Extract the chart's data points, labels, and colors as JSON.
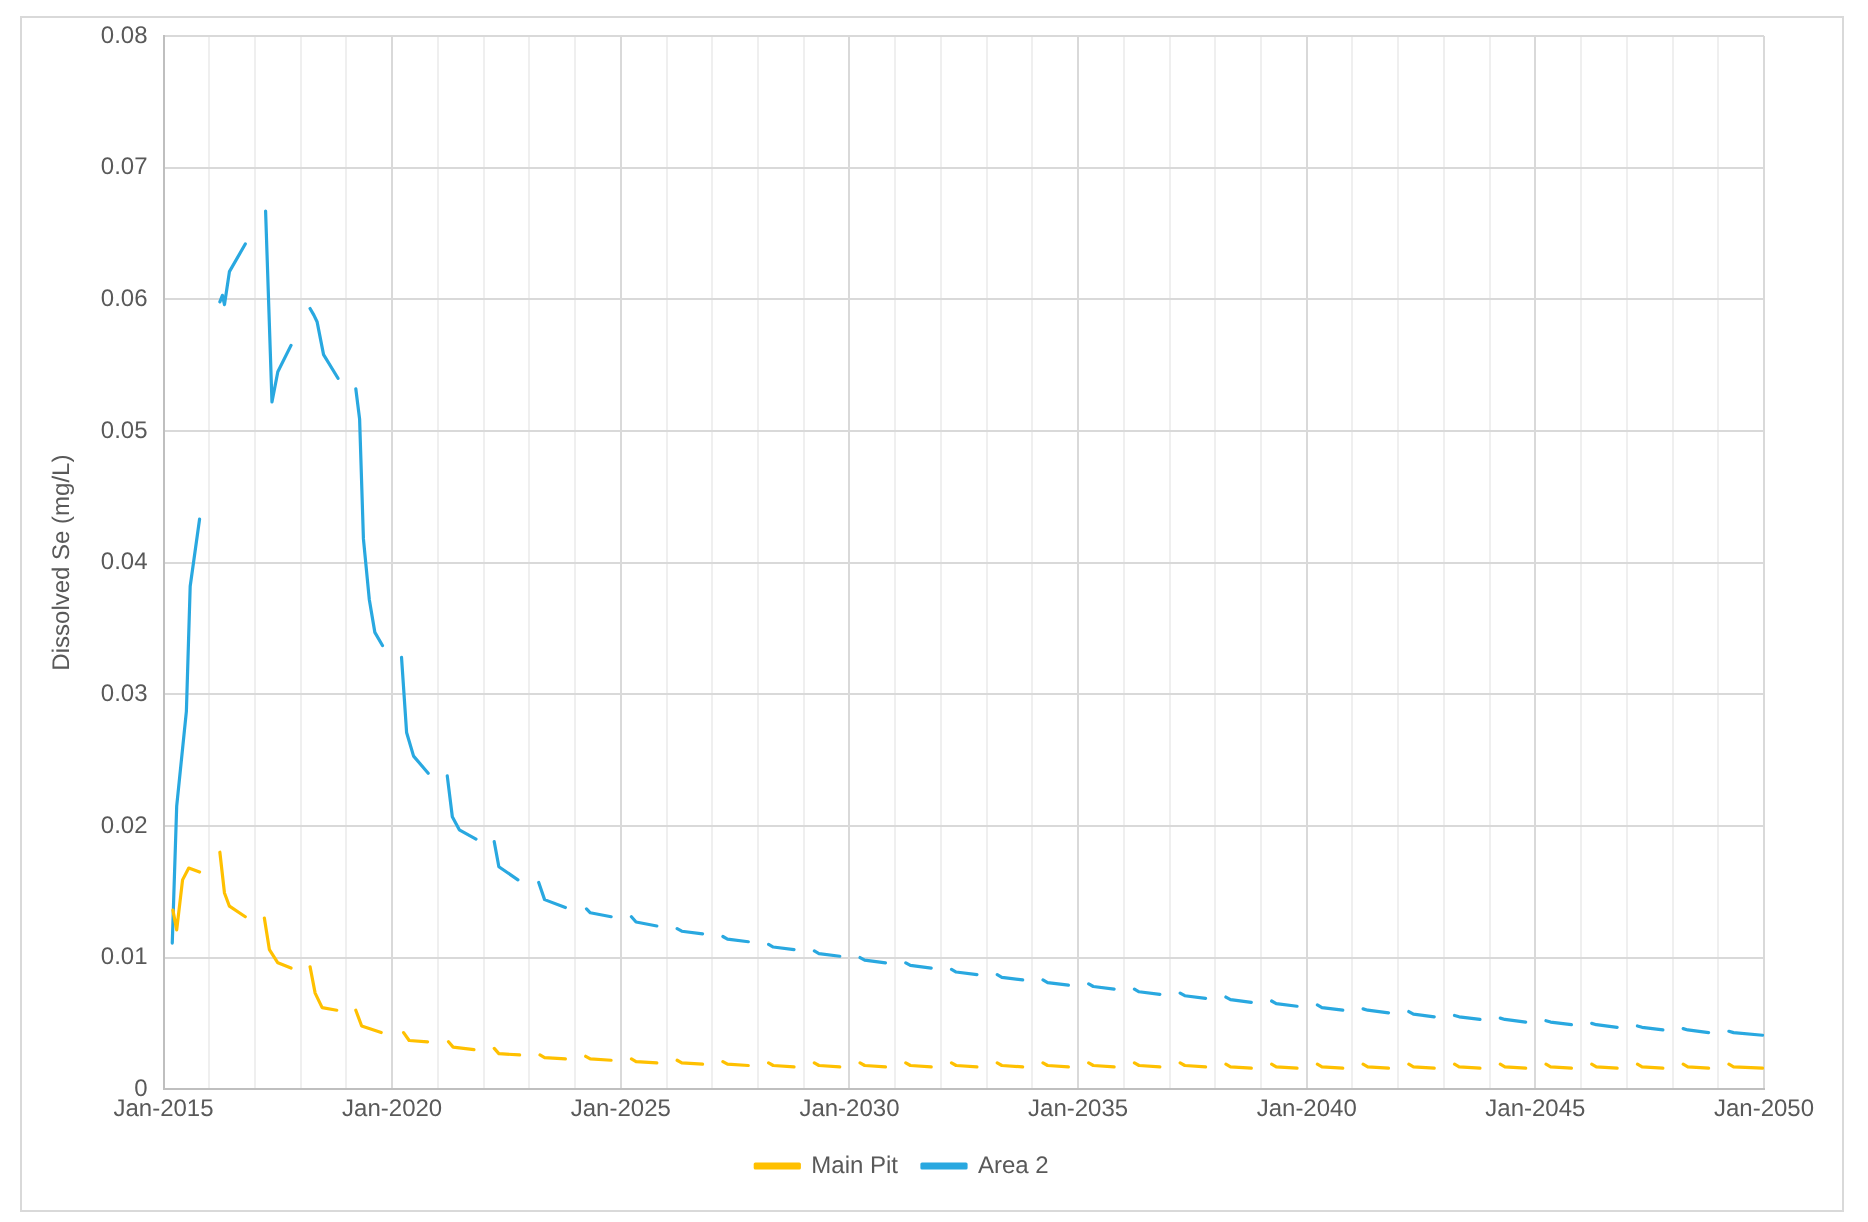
{
  "chart_data": {
    "type": "line",
    "ylabel": "Dissolved Se (mg/L)",
    "xlim": [
      "2015-01",
      "2050-01"
    ],
    "ylim": [
      0,
      0.08
    ],
    "yticks": [
      0,
      0.01,
      0.02,
      0.03,
      0.04,
      0.05,
      0.06,
      0.07,
      0.08
    ],
    "xticks": [
      {
        "value": "2015-01",
        "label": "Jan-2015"
      },
      {
        "value": "2016-01",
        "label": null
      },
      {
        "value": "2017-01",
        "label": null
      },
      {
        "value": "2018-01",
        "label": null
      },
      {
        "value": "2019-01",
        "label": null
      },
      {
        "value": "2020-01",
        "label": "Jan-2020"
      },
      {
        "value": "2021-01",
        "label": null
      },
      {
        "value": "2022-01",
        "label": null
      },
      {
        "value": "2023-01",
        "label": null
      },
      {
        "value": "2024-01",
        "label": null
      },
      {
        "value": "2025-01",
        "label": "Jan-2025"
      },
      {
        "value": "2026-01",
        "label": null
      },
      {
        "value": "2027-01",
        "label": null
      },
      {
        "value": "2028-01",
        "label": null
      },
      {
        "value": "2029-01",
        "label": null
      },
      {
        "value": "2030-01",
        "label": "Jan-2030"
      },
      {
        "value": "2031-01",
        "label": null
      },
      {
        "value": "2032-01",
        "label": null
      },
      {
        "value": "2033-01",
        "label": null
      },
      {
        "value": "2034-01",
        "label": null
      },
      {
        "value": "2035-01",
        "label": "Jan-2035"
      },
      {
        "value": "2036-01",
        "label": null
      },
      {
        "value": "2037-01",
        "label": null
      },
      {
        "value": "2038-01",
        "label": null
      },
      {
        "value": "2039-01",
        "label": null
      },
      {
        "value": "2040-01",
        "label": "Jan-2040"
      },
      {
        "value": "2041-01",
        "label": null
      },
      {
        "value": "2042-01",
        "label": null
      },
      {
        "value": "2043-01",
        "label": null
      },
      {
        "value": "2044-01",
        "label": null
      },
      {
        "value": "2045-01",
        "label": "Jan-2045"
      },
      {
        "value": "2046-01",
        "label": null
      },
      {
        "value": "2047-01",
        "label": null
      },
      {
        "value": "2048-01",
        "label": null
      },
      {
        "value": "2049-01",
        "label": null
      },
      {
        "value": "2050-01",
        "label": "Jan-2050"
      }
    ],
    "grid": true,
    "legend": "bottom",
    "series": [
      {
        "name": "Main Pit",
        "color": "#ffc000",
        "x": [
          "2015-03-15",
          "2015-04-15",
          "2015-06-01",
          "2015-07-20",
          "2015-10-15",
          "2015-12-15",
          "2016-03-25",
          "2016-05-01",
          "2016-06-10",
          "2016-10-15",
          "2016-12-15",
          "2017-03-15",
          "2017-04-25",
          "2017-07-01",
          "2017-10-15",
          "2017-12-15",
          "2018-03-15",
          "2018-04-25",
          "2018-06-20",
          "2018-10-15",
          "2018-12-15",
          "2019-03-15",
          "2019-05-01",
          "2019-10-05",
          "2019-12-15",
          "2020-04-01",
          "2020-05-15",
          "2020-10-10",
          "2020-12-15",
          "2021-03-25",
          "2021-05-01",
          "2021-10-15",
          "2021-12-15",
          "2022-03-25",
          "2022-05-01",
          "2022-10-15",
          "2022-12-15",
          "2023-03-25",
          "2023-05-01",
          "2023-10-15",
          "2023-12-15",
          "2024-03-25",
          "2024-05-01",
          "2024-10-15",
          "2024-12-15",
          "2025-03-25",
          "2025-05-01",
          "2025-10-15",
          "2025-12-15",
          "2026-03-25",
          "2026-05-01",
          "2026-10-15",
          "2026-12-15",
          "2027-03-25",
          "2027-05-01",
          "2027-10-15",
          "2027-12-15",
          "2028-03-25",
          "2028-05-01",
          "2028-10-15",
          "2028-12-15",
          "2029-03-25",
          "2029-05-01",
          "2029-10-15",
          "2029-12-15",
          "2030-03-25",
          "2030-05-01",
          "2030-10-15",
          "2030-12-15",
          "2031-03-25",
          "2031-05-01",
          "2031-10-15",
          "2031-12-15",
          "2032-03-25",
          "2032-05-01",
          "2032-10-15",
          "2032-12-15",
          "2033-03-25",
          "2033-05-01",
          "2033-10-15",
          "2033-12-15",
          "2034-03-25",
          "2034-05-01",
          "2034-10-15",
          "2034-12-15",
          "2035-03-25",
          "2035-05-01",
          "2035-10-15",
          "2035-12-15",
          "2036-03-25",
          "2036-05-01",
          "2036-10-15",
          "2036-12-15",
          "2037-03-25",
          "2037-05-01",
          "2037-10-15",
          "2037-12-15",
          "2038-03-25",
          "2038-05-01",
          "2038-10-15",
          "2038-12-15",
          "2039-03-25",
          "2039-05-01",
          "2039-10-15",
          "2039-12-15",
          "2040-03-25",
          "2040-05-01",
          "2040-10-15",
          "2040-12-15",
          "2041-03-25",
          "2041-05-01",
          "2041-10-15",
          "2041-12-15",
          "2042-03-25",
          "2042-05-01",
          "2042-10-15",
          "2042-12-15",
          "2043-03-25",
          "2043-05-01",
          "2043-10-15",
          "2043-12-15",
          "2044-03-25",
          "2044-05-01",
          "2044-10-15",
          "2044-12-15",
          "2045-03-25",
          "2045-05-01",
          "2045-10-15",
          "2045-12-15",
          "2046-03-25",
          "2046-05-01",
          "2046-10-15",
          "2046-12-15",
          "2047-03-25",
          "2047-05-01",
          "2047-10-15",
          "2047-12-15",
          "2048-03-25",
          "2048-05-01",
          "2048-10-15",
          "2048-12-15",
          "2049-03-25",
          "2049-05-01",
          "2049-12-20"
        ],
        "values": [
          0.0136,
          0.0121,
          0.0159,
          0.0168,
          0.0165,
          null,
          0.018,
          0.0149,
          0.0139,
          0.0131,
          null,
          0.013,
          0.0106,
          0.0096,
          0.0092,
          null,
          0.0093,
          0.0073,
          0.0062,
          0.006,
          null,
          0.006,
          0.0048,
          0.0043,
          null,
          0.0043,
          0.0037,
          0.0036,
          null,
          0.0036,
          0.0032,
          0.003,
          null,
          0.0031,
          0.0027,
          0.0026,
          null,
          0.0026,
          0.0024,
          0.0023,
          null,
          0.0025,
          0.0023,
          0.0022,
          null,
          0.0023,
          0.0021,
          0.002,
          null,
          0.0022,
          0.002,
          0.0019,
          null,
          0.0021,
          0.0019,
          0.0018,
          null,
          0.002,
          0.0018,
          0.0017,
          null,
          0.002,
          0.0018,
          0.0017,
          null,
          0.002,
          0.0018,
          0.0017,
          null,
          0.002,
          0.0018,
          0.0017,
          null,
          0.002,
          0.0018,
          0.0017,
          null,
          0.002,
          0.0018,
          0.0017,
          null,
          0.002,
          0.0018,
          0.0017,
          null,
          0.002,
          0.0018,
          0.0017,
          null,
          0.002,
          0.0018,
          0.0017,
          null,
          0.002,
          0.0018,
          0.0017,
          null,
          0.0019,
          0.0017,
          0.0016,
          null,
          0.0019,
          0.0017,
          0.0016,
          null,
          0.0019,
          0.0017,
          0.0016,
          null,
          0.0019,
          0.0017,
          0.0016,
          null,
          0.0019,
          0.0017,
          0.0016,
          null,
          0.0019,
          0.0017,
          0.0016,
          null,
          0.0019,
          0.0017,
          0.0016,
          null,
          0.0019,
          0.0017,
          0.0016,
          null,
          0.0019,
          0.0017,
          0.0016,
          null,
          0.0019,
          0.0017,
          0.0016,
          null,
          0.0019,
          0.0017,
          0.0016,
          null,
          0.0019,
          0.0017,
          0.0016
        ]
      },
      {
        "name": "Area 2",
        "color": "#29a8e0",
        "x": [
          "2015-03-10",
          "2015-04-15",
          "2015-07-01",
          "2015-08-01",
          "2015-10-15",
          "2015-12-15",
          "2016-03-25",
          "2016-04-15",
          "2016-05-01",
          "2016-06-10",
          "2016-10-15",
          "2016-12-15",
          "2017-03-25",
          "2017-05-15",
          "2017-07-01",
          "2017-10-15",
          "2017-12-15",
          "2018-03-15",
          "2018-04-15",
          "2018-05-10",
          "2018-07-01",
          "2018-10-25",
          "2018-12-15",
          "2019-03-15",
          "2019-04-15",
          "2019-05-15",
          "2019-07-01",
          "2019-08-15",
          "2019-10-15",
          "2019-12-15",
          "2020-03-15",
          "2020-04-25",
          "2020-06-20",
          "2020-10-15",
          "2020-12-15",
          "2021-03-15",
          "2021-04-25",
          "2021-06-20",
          "2021-11-01",
          "2021-12-15",
          "2022-03-25",
          "2022-05-01",
          "2022-10-01",
          "2022-12-15",
          "2023-03-15",
          "2023-05-01",
          "2023-10-15",
          "2023-12-15",
          "2024-04-01",
          "2024-05-01",
          "2024-10-15",
          "2024-12-15",
          "2025-03-25",
          "2025-05-01",
          "2025-10-15",
          "2025-12-15",
          "2026-03-25",
          "2026-05-01",
          "2026-10-15",
          "2026-12-15",
          "2027-03-25",
          "2027-05-01",
          "2027-10-15",
          "2027-12-15",
          "2028-03-25",
          "2028-05-01",
          "2028-10-15",
          "2028-12-15",
          "2029-03-25",
          "2029-05-01",
          "2029-10-15",
          "2029-12-15",
          "2030-03-25",
          "2030-05-01",
          "2030-10-15",
          "2030-12-15",
          "2031-03-25",
          "2031-05-01",
          "2031-10-15",
          "2031-12-15",
          "2032-03-25",
          "2032-05-01",
          "2032-10-15",
          "2032-12-15",
          "2033-03-25",
          "2033-05-01",
          "2033-10-15",
          "2033-12-15",
          "2034-03-25",
          "2034-05-01",
          "2034-10-15",
          "2034-12-15",
          "2035-03-25",
          "2035-05-01",
          "2035-10-15",
          "2035-12-15",
          "2036-03-25",
          "2036-05-01",
          "2036-10-15",
          "2036-12-15",
          "2037-03-25",
          "2037-05-01",
          "2037-10-15",
          "2037-12-15",
          "2038-03-25",
          "2038-05-01",
          "2038-10-15",
          "2038-12-15",
          "2039-03-25",
          "2039-05-01",
          "2039-10-15",
          "2039-12-15",
          "2040-03-25",
          "2040-05-01",
          "2040-10-15",
          "2040-12-15",
          "2041-03-25",
          "2041-05-01",
          "2041-10-15",
          "2041-12-15",
          "2042-03-25",
          "2042-05-01",
          "2042-10-15",
          "2042-12-15",
          "2043-03-25",
          "2043-05-01",
          "2043-10-15",
          "2043-12-15",
          "2044-03-25",
          "2044-05-01",
          "2044-10-15",
          "2044-12-15",
          "2045-03-25",
          "2045-05-01",
          "2045-10-15",
          "2045-12-15",
          "2046-03-25",
          "2046-05-01",
          "2046-10-15",
          "2046-12-15",
          "2047-03-25",
          "2047-05-01",
          "2047-10-15",
          "2047-12-15",
          "2048-03-25",
          "2048-05-01",
          "2048-10-15",
          "2048-12-15",
          "2049-03-25",
          "2049-05-01",
          "2049-12-20"
        ],
        "values": [
          0.0111,
          0.0215,
          0.0287,
          0.0382,
          0.0433,
          null,
          0.0598,
          0.0603,
          0.0596,
          0.0621,
          0.0642,
          null,
          0.0667,
          0.0522,
          0.0545,
          0.0565,
          null,
          0.0593,
          0.0588,
          0.0583,
          0.0558,
          0.054,
          null,
          0.0532,
          0.0509,
          0.0418,
          0.0372,
          0.0347,
          0.0337,
          null,
          0.0328,
          0.0271,
          0.0253,
          0.024,
          null,
          0.0238,
          0.0207,
          0.0197,
          0.019,
          null,
          0.0188,
          0.0169,
          0.0159,
          null,
          0.0157,
          0.0144,
          0.0138,
          null,
          0.0137,
          0.0134,
          0.0131,
          null,
          0.0131,
          0.0127,
          0.0124,
          null,
          0.0122,
          0.012,
          0.0118,
          null,
          0.0116,
          0.0114,
          0.0112,
          null,
          0.011,
          0.0108,
          0.0106,
          null,
          0.0105,
          0.0103,
          0.0101,
          null,
          0.01,
          0.0098,
          0.0096,
          null,
          0.0096,
          0.0094,
          0.0092,
          null,
          0.0091,
          0.0089,
          0.0087,
          null,
          0.0087,
          0.0085,
          0.0083,
          null,
          0.0083,
          0.0081,
          0.0079,
          null,
          0.008,
          0.0078,
          0.0076,
          null,
          0.0076,
          0.0074,
          0.0072,
          null,
          0.0073,
          0.0071,
          0.0069,
          null,
          0.007,
          0.0068,
          0.0066,
          null,
          0.0067,
          0.0065,
          0.0063,
          null,
          0.0064,
          0.0062,
          0.006,
          null,
          0.0061,
          0.006,
          0.0058,
          null,
          0.0059,
          0.0057,
          0.0055,
          null,
          0.0056,
          0.0055,
          0.0053,
          null,
          0.0054,
          0.0053,
          0.0051,
          null,
          0.0052,
          0.0051,
          0.0049,
          null,
          0.005,
          0.0049,
          0.0047,
          null,
          0.0048,
          0.0047,
          0.0045,
          null,
          0.0046,
          0.0045,
          0.0043,
          null,
          0.0044,
          0.0043,
          0.0041
        ]
      }
    ]
  }
}
